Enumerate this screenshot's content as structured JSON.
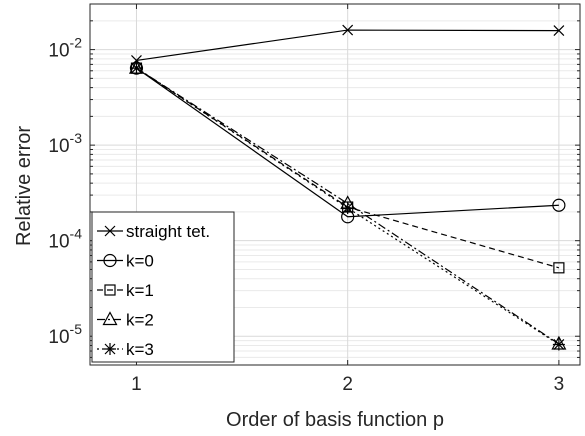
{
  "chart_data": {
    "type": "line",
    "xlabel": "Order of basis function p",
    "ylabel": "Relative error",
    "yscale": "log",
    "x": [
      1,
      2,
      3
    ],
    "xlim": [
      0.78,
      3.1
    ],
    "ylim": [
      5e-06,
      0.03
    ],
    "x_ticks": [
      "1",
      "2",
      "3"
    ],
    "y_ticks": [
      {
        "value": 1e-05,
        "base": "10",
        "exp": "-5"
      },
      {
        "value": 0.0001,
        "base": "10",
        "exp": "-4"
      },
      {
        "value": 0.001,
        "base": "10",
        "exp": "-3"
      },
      {
        "value": 0.01,
        "base": "10",
        "exp": "-2"
      }
    ],
    "grid": true,
    "legend_position": "bottom-left",
    "series": [
      {
        "name": "straight tet.",
        "marker": "x",
        "dash": "solid",
        "values": [
          0.0077,
          0.016,
          0.0158
        ]
      },
      {
        "name": "k=0",
        "marker": "circle",
        "dash": "solid",
        "values": [
          0.0064,
          0.000178,
          0.000235
        ]
      },
      {
        "name": "k=1",
        "marker": "square",
        "dash": "dashed",
        "values": [
          0.0064,
          0.000225,
          5.2e-05
        ]
      },
      {
        "name": "k=2",
        "marker": "triangle",
        "dash": "dashdot",
        "values": [
          0.0064,
          0.000245,
          8.3e-06
        ]
      },
      {
        "name": "k=3",
        "marker": "asterisk",
        "dash": "dotted",
        "values": [
          0.0064,
          0.00022,
          8.2e-06
        ]
      }
    ]
  }
}
